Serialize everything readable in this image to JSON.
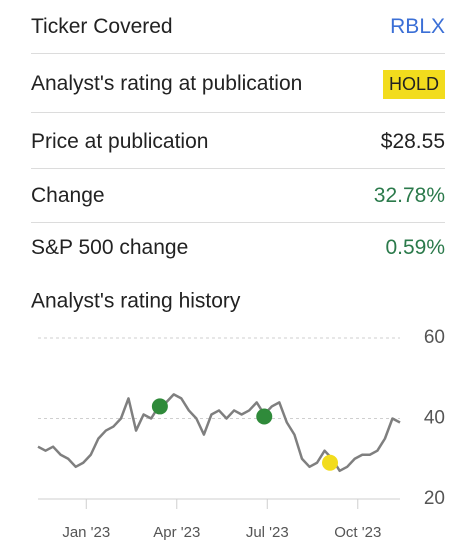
{
  "rows": [
    {
      "label": "Ticker Covered",
      "value": "RBLX"
    },
    {
      "label": "Analyst's rating at publication",
      "value": "HOLD"
    },
    {
      "label": "Price at publication",
      "value": "$28.55"
    },
    {
      "label": "Change",
      "value": "32.78%"
    },
    {
      "label": "S&P 500 change",
      "value": "0.59%"
    }
  ],
  "chart_data": {
    "type": "line",
    "title": "Analyst's rating history",
    "color": "#7f7f7f",
    "x": [
      -0.6,
      -0.35,
      -0.1,
      0.15,
      0.4,
      0.65,
      0.9,
      1.15,
      1.4,
      1.65,
      1.9,
      2.15,
      2.4,
      2.65,
      2.9,
      3.15,
      3.4,
      3.65,
      3.9,
      4.15,
      4.4,
      4.65,
      4.9,
      5.15,
      5.4,
      5.65,
      5.9,
      6.15,
      6.4,
      6.65,
      6.9,
      7.15,
      7.4,
      7.65,
      7.9,
      8.15,
      8.4,
      8.65,
      8.9,
      9.15,
      9.4,
      9.65,
      9.9,
      10.15,
      10.4,
      10.65,
      10.9,
      11.15,
      11.4
    ],
    "values": [
      33,
      32,
      33,
      31,
      30,
      28,
      29,
      31,
      35,
      37,
      38,
      40,
      45,
      37,
      41,
      40,
      43,
      44,
      46,
      45,
      42,
      40,
      36,
      41,
      42,
      40,
      42,
      41,
      42,
      44,
      41,
      43,
      44,
      39,
      36,
      30,
      28,
      29,
      32,
      30,
      27,
      28,
      30,
      31,
      31,
      32,
      35,
      40,
      39
    ],
    "ratings": {
      "x": [
        3.44,
        6.9,
        9.08
      ],
      "values": [
        43,
        40.5,
        29
      ],
      "colors": [
        "#2f8a3a",
        "#2f8a3a",
        "#f2dc1d"
      ]
    },
    "xlim": [
      -0.6,
      11.4
    ],
    "xticks": [
      {
        "value": 1,
        "label": "Jan '23"
      },
      {
        "value": 4,
        "label": "Apr '23"
      },
      {
        "value": 7,
        "label": "Jul '23"
      },
      {
        "value": 10,
        "label": "Oct '23"
      }
    ],
    "ylim": [
      20,
      60
    ],
    "yticks": [
      20,
      40,
      60
    ],
    "grid": true
  }
}
